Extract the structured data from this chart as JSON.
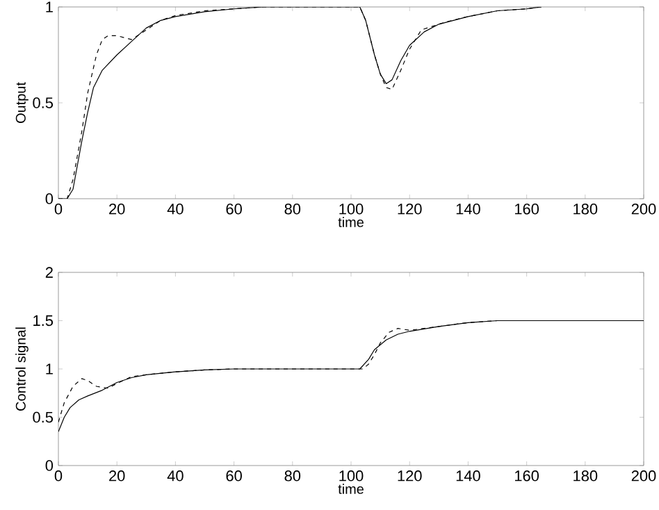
{
  "chart_data": [
    {
      "type": "line",
      "xlabel": "time",
      "ylabel": "Output",
      "xlim": [
        0,
        200
      ],
      "ylim": [
        0,
        1
      ],
      "xticks": [
        0,
        20,
        40,
        60,
        80,
        100,
        120,
        140,
        160,
        180,
        200
      ],
      "yticks": [
        0,
        0.5,
        1
      ],
      "series": [
        {
          "color": "#000000",
          "line_style": "solid",
          "x": [
            0,
            3,
            5,
            8,
            10,
            12,
            15,
            20,
            25,
            30,
            35,
            40,
            50,
            60,
            70,
            100,
            103,
            105,
            108,
            110,
            112,
            114,
            117,
            120,
            125,
            130,
            140,
            150,
            160,
            165
          ],
          "values": [
            0,
            0,
            0.05,
            0.3,
            0.45,
            0.58,
            0.67,
            0.75,
            0.82,
            0.89,
            0.93,
            0.95,
            0.975,
            0.99,
            1,
            1,
            1,
            0.93,
            0.75,
            0.65,
            0.6,
            0.62,
            0.72,
            0.8,
            0.87,
            0.91,
            0.95,
            0.98,
            0.99,
            1
          ]
        },
        {
          "color": "#000000",
          "line_style": "dashed",
          "x": [
            0,
            3,
            5,
            8,
            10,
            13,
            15,
            17,
            20,
            25,
            30,
            35,
            40,
            50,
            60,
            70,
            100,
            103,
            105,
            108,
            110,
            112,
            114,
            117,
            120,
            124,
            128,
            132,
            140,
            150,
            160,
            165
          ],
          "values": [
            0,
            0,
            0.1,
            0.35,
            0.55,
            0.75,
            0.83,
            0.85,
            0.85,
            0.83,
            0.88,
            0.93,
            0.955,
            0.98,
            0.99,
            1,
            1,
            1,
            0.93,
            0.75,
            0.65,
            0.58,
            0.57,
            0.67,
            0.78,
            0.88,
            0.9,
            0.92,
            0.95,
            0.98,
            0.99,
            1
          ]
        }
      ]
    },
    {
      "type": "line",
      "xlabel": "time",
      "ylabel": "Control signal",
      "xlim": [
        0,
        200
      ],
      "ylim": [
        0,
        2
      ],
      "xticks": [
        0,
        20,
        40,
        60,
        80,
        100,
        120,
        140,
        160,
        180,
        200
      ],
      "yticks": [
        0,
        0.5,
        1,
        1.5,
        2
      ],
      "series": [
        {
          "color": "#000000",
          "line_style": "solid",
          "x": [
            0,
            2,
            4,
            7,
            10,
            15,
            20,
            25,
            30,
            40,
            50,
            60,
            100,
            103,
            106,
            108,
            112,
            116,
            120,
            130,
            140,
            150,
            200
          ],
          "values": [
            0.35,
            0.5,
            0.6,
            0.68,
            0.72,
            0.78,
            0.86,
            0.91,
            0.94,
            0.97,
            0.99,
            1,
            1,
            1,
            1.1,
            1.2,
            1.3,
            1.36,
            1.39,
            1.44,
            1.48,
            1.5,
            1.5
          ]
        },
        {
          "color": "#000000",
          "line_style": "dashed",
          "x": [
            0,
            2,
            5,
            8,
            10,
            13,
            17,
            20,
            25,
            30,
            40,
            50,
            60,
            100,
            104,
            106,
            108,
            110,
            113,
            116,
            120,
            125,
            130,
            140,
            150,
            200
          ],
          "values": [
            0.45,
            0.65,
            0.82,
            0.9,
            0.88,
            0.82,
            0.8,
            0.85,
            0.92,
            0.94,
            0.97,
            0.99,
            1,
            1,
            1,
            1.05,
            1.15,
            1.27,
            1.38,
            1.42,
            1.4,
            1.42,
            1.44,
            1.48,
            1.5,
            1.5
          ]
        }
      ]
    }
  ]
}
